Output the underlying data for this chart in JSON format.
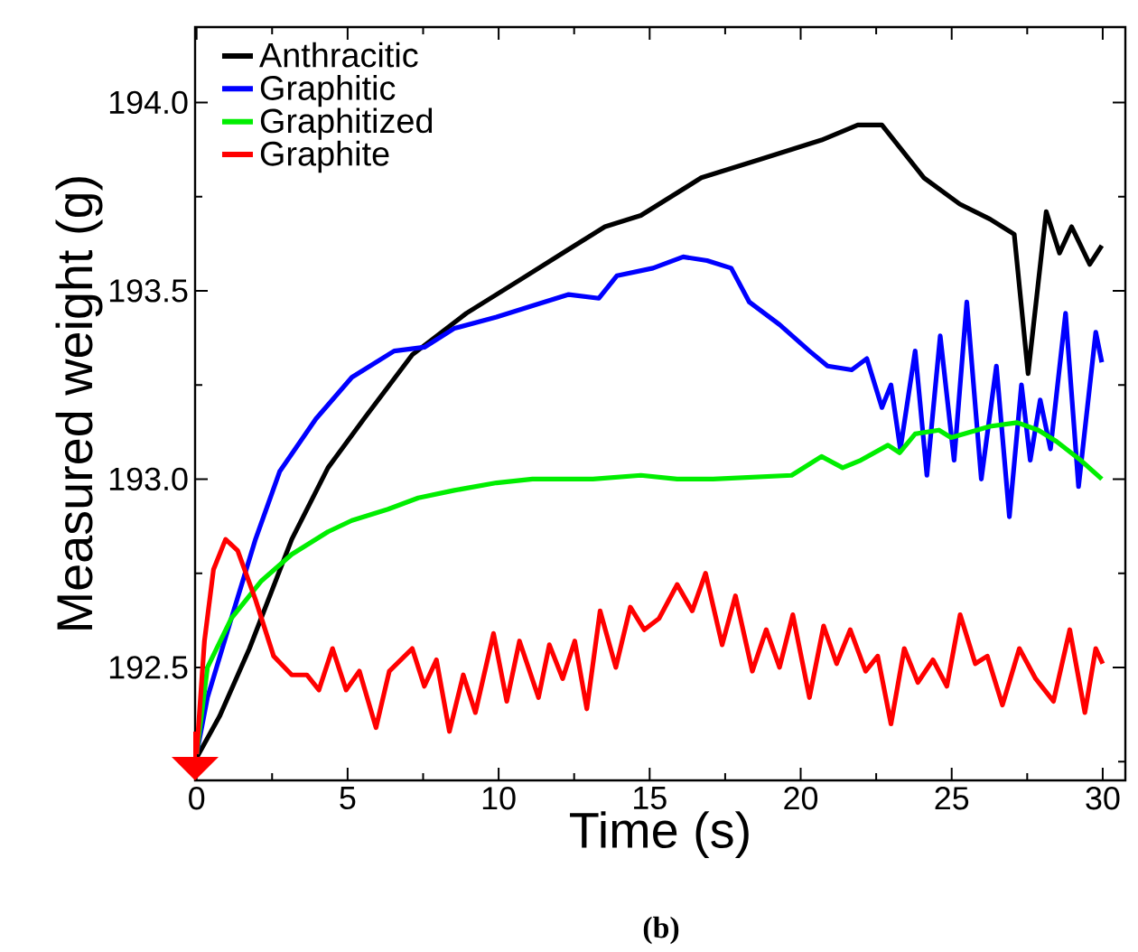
{
  "chart_data": {
    "type": "line",
    "xlabel": "Time (s)",
    "ylabel": "Measured weight (g)",
    "annotations": [
      "(b)"
    ],
    "xlim": [
      -0.05,
      30.75
    ],
    "ylim": [
      192.2,
      194.2
    ],
    "xticks": [
      0,
      {
        "value": 2.5,
        "label": null
      },
      5,
      {
        "value": 7.5,
        "label": null
      },
      10,
      {
        "value": 12.5,
        "label": null
      },
      15,
      {
        "value": 17.5,
        "label": null
      },
      20,
      {
        "value": 22.5,
        "label": null
      },
      25,
      {
        "value": 27.5,
        "label": null
      },
      30
    ],
    "yticks": [
      {
        "value": 192.25,
        "label": null
      },
      {
        "value": 192.5,
        "label": "192.5"
      },
      {
        "value": 192.75,
        "label": null
      },
      {
        "value": 193.0,
        "label": "193.0"
      },
      {
        "value": 193.25,
        "label": null
      },
      {
        "value": 193.5,
        "label": "193.5"
      },
      {
        "value": 193.75,
        "label": null
      },
      {
        "value": 194.0,
        "label": "194.0"
      }
    ],
    "legend": "top left",
    "grid": false,
    "marker": "none",
    "line_style": "solid",
    "series": [
      {
        "name": "Anthracitic",
        "color": "#000000",
        "x": [
          0,
          0.76,
          1.75,
          3.15,
          4.35,
          5.54,
          7.14,
          8.93,
          10.73,
          12.32,
          13.52,
          14.71,
          16.71,
          18.7,
          20.69,
          21.89,
          22.69,
          24.08,
          25.27,
          26.27,
          27.07,
          27.53,
          28.13,
          28.57,
          28.97,
          29.57,
          29.97
        ],
        "values": [
          192.26,
          192.37,
          192.55,
          192.84,
          193.03,
          193.16,
          193.33,
          193.44,
          193.53,
          193.61,
          193.67,
          193.7,
          193.8,
          193.85,
          193.9,
          193.94,
          193.94,
          193.8,
          193.73,
          193.69,
          193.65,
          193.28,
          193.71,
          193.6,
          193.67,
          193.57,
          193.62
        ]
      },
      {
        "name": "Graphitic",
        "color": "#0000ff",
        "x": [
          0,
          0.36,
          1.15,
          1.95,
          2.75,
          3.95,
          5.14,
          6.54,
          7.54,
          8.53,
          9.93,
          11.12,
          12.32,
          13.32,
          13.92,
          15.11,
          16.11,
          16.9,
          17.7,
          18.3,
          19.3,
          20.29,
          20.89,
          21.69,
          22.19,
          22.69,
          22.99,
          23.3,
          23.79,
          24.18,
          24.62,
          25.08,
          25.5,
          25.98,
          26.48,
          26.91,
          27.31,
          27.6,
          27.93,
          28.27,
          28.77,
          29.2,
          29.77,
          29.97
        ],
        "values": [
          192.27,
          192.42,
          192.63,
          192.84,
          193.02,
          193.16,
          193.27,
          193.34,
          193.35,
          193.4,
          193.43,
          193.46,
          193.49,
          193.48,
          193.54,
          193.56,
          193.59,
          193.58,
          193.56,
          193.47,
          193.41,
          193.34,
          193.3,
          193.29,
          193.32,
          193.19,
          193.25,
          193.08,
          193.34,
          193.01,
          193.38,
          193.05,
          193.47,
          193.0,
          193.3,
          192.9,
          193.25,
          193.05,
          193.21,
          193.08,
          193.44,
          192.98,
          193.39,
          193.31
        ]
      },
      {
        "name": "Graphitized",
        "color": "#00ee00",
        "x": [
          0,
          0.36,
          1.15,
          2.15,
          3.15,
          4.35,
          5.14,
          6.34,
          7.34,
          8.53,
          9.93,
          11.12,
          13.12,
          14.71,
          15.91,
          17.1,
          19.7,
          20.69,
          21.39,
          21.99,
          22.89,
          23.28,
          23.79,
          24.58,
          24.98,
          26.27,
          27.17,
          27.87,
          28.47,
          29.27,
          29.97
        ],
        "values": [
          192.27,
          192.5,
          192.63,
          192.73,
          192.8,
          192.86,
          192.89,
          192.92,
          192.95,
          192.97,
          192.99,
          193.0,
          193.0,
          193.01,
          193.0,
          193.0,
          193.01,
          193.06,
          193.03,
          193.05,
          193.09,
          193.07,
          193.12,
          193.13,
          193.11,
          193.14,
          193.15,
          193.13,
          193.1,
          193.05,
          193.0
        ]
      },
      {
        "name": "Graphite",
        "color": "#ff0000",
        "x": [
          0,
          0.26,
          0.56,
          0.96,
          1.36,
          1.95,
          2.55,
          3.15,
          3.65,
          4.05,
          4.5,
          4.95,
          5.39,
          5.94,
          6.38,
          7.14,
          7.54,
          7.94,
          8.37,
          8.83,
          9.23,
          9.83,
          10.27,
          10.69,
          11.32,
          11.68,
          12.12,
          12.52,
          12.92,
          13.36,
          13.88,
          14.36,
          14.82,
          15.31,
          15.91,
          16.41,
          16.85,
          17.4,
          17.84,
          18.4,
          18.86,
          19.3,
          19.74,
          20.29,
          20.76,
          21.19,
          21.64,
          22.15,
          22.55,
          22.99,
          23.43,
          23.88,
          24.38,
          24.84,
          25.28,
          25.78,
          26.18,
          26.68,
          27.24,
          27.78,
          28.37,
          28.91,
          29.41,
          29.77,
          30.0
        ],
        "values": [
          192.27,
          192.57,
          192.76,
          192.84,
          192.81,
          192.68,
          192.53,
          192.48,
          192.48,
          192.44,
          192.55,
          192.44,
          192.49,
          192.34,
          192.49,
          192.55,
          192.45,
          192.52,
          192.33,
          192.48,
          192.38,
          192.59,
          192.41,
          192.57,
          192.42,
          192.56,
          192.47,
          192.57,
          192.39,
          192.65,
          192.5,
          192.66,
          192.6,
          192.63,
          192.72,
          192.65,
          192.75,
          192.56,
          192.69,
          192.49,
          192.6,
          192.5,
          192.64,
          192.42,
          192.61,
          192.51,
          192.6,
          192.49,
          192.53,
          192.35,
          192.55,
          192.46,
          192.52,
          192.45,
          192.64,
          192.51,
          192.53,
          192.4,
          192.55,
          192.47,
          192.41,
          192.6,
          192.38,
          192.55,
          192.51
        ]
      }
    ]
  }
}
